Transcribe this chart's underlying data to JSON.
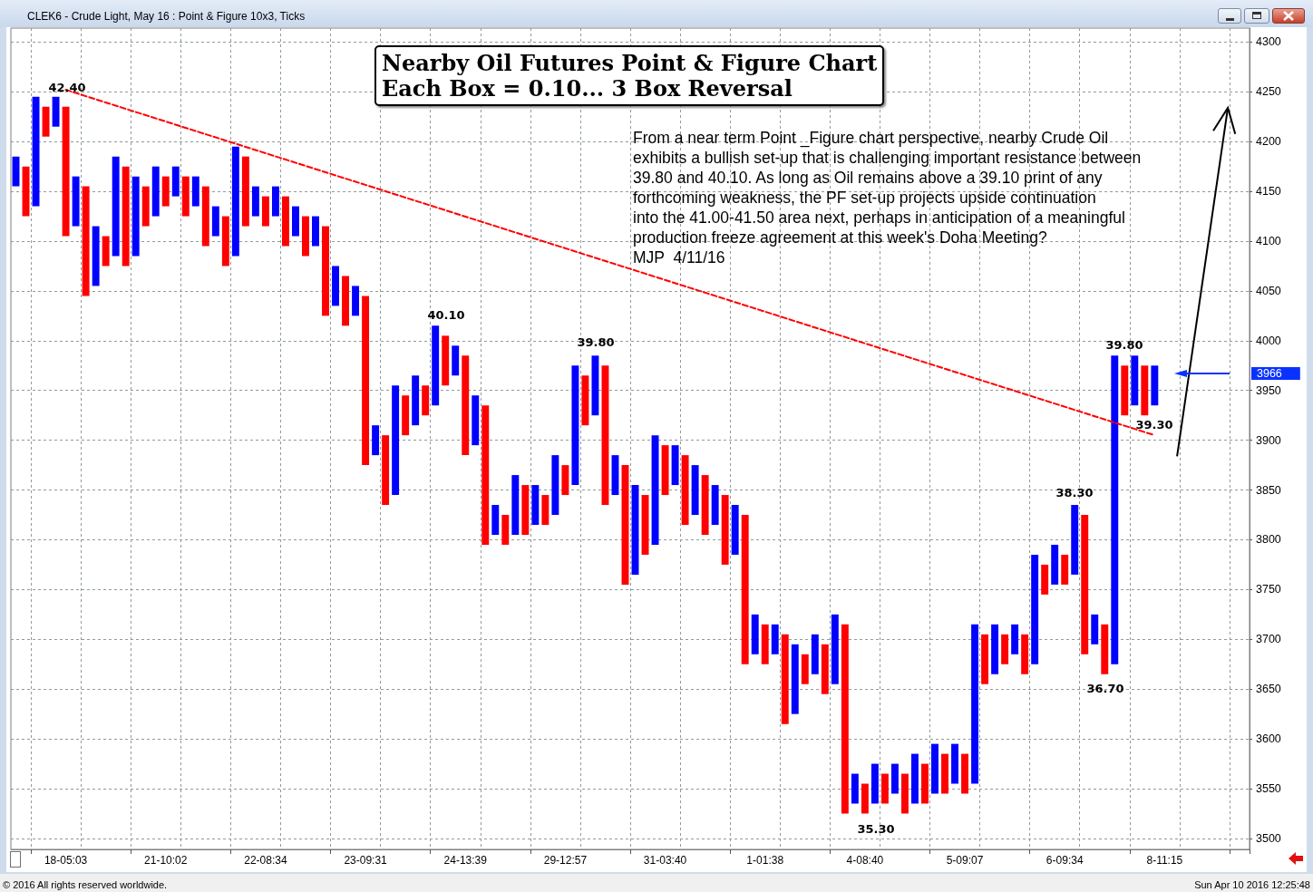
{
  "chart_data": {
    "type": "bar",
    "title": "Nearby Oil Futures Point & Figure Chart",
    "subtitle": "Each Box = 0.10... 3 Box Reversal",
    "annotations": [
      "CLEK6 - Crude Light, May 16 : Point & Figure 10x3, Ticks",
      "From a near term Point _Figure chart perspective, nearby Crude Oil\nexhibits a bullish set-up that is challenging important resistance between\n39.80 and 40.10. As long as Oil remains above a 39.10 print of any\nforthcoming weakness, the PF set-up projects upside continuation\ninto the 41.00-41.50 area next, perhaps in anticipation of a meaningful\nproduction freeze agreement at this week's Doha Meeting?\nMJP  4/11/16",
      "42.40",
      "40.10",
      "39.80",
      "38.30",
      "36.70",
      "35.30",
      "39.80",
      "39.30",
      "3966",
      "© 2016 All rights reserved worldwide.",
      "Sun Apr 10 2016 12:25:48"
    ],
    "categories": [
      null,
      null,
      null,
      null,
      null,
      "18-05:03",
      null,
      null,
      null,
      null,
      null,
      null,
      null,
      null,
      null,
      "21-10:02",
      null,
      null,
      null,
      null,
      null,
      null,
      null,
      null,
      null,
      "22-08:34",
      null,
      null,
      null,
      null,
      null,
      null,
      null,
      null,
      null,
      "23-09:31",
      null,
      null,
      null,
      null,
      null,
      null,
      null,
      null,
      null,
      "24-13:39",
      null,
      null,
      null,
      null,
      null,
      null,
      null,
      null,
      null,
      "29-12:57",
      null,
      null,
      null,
      null,
      null,
      null,
      null,
      null,
      null,
      "31-03:40",
      null,
      null,
      null,
      null,
      null,
      null,
      null,
      null,
      null,
      "1-01:38",
      null,
      null,
      null,
      null,
      null,
      null,
      null,
      null,
      null,
      "4-08:40",
      null,
      null,
      null,
      null,
      null,
      null,
      null,
      null,
      null,
      "5-09:07",
      null,
      null,
      null,
      null,
      null,
      null,
      null,
      null,
      null,
      "6-09:34",
      null,
      null,
      null,
      null,
      null,
      null,
      null,
      null,
      null,
      "8-11:15",
      null,
      null,
      null,
      null,
      null,
      null,
      null,
      null
    ],
    "ylim": [
      3489,
      4314
    ],
    "yticks": [
      3500,
      3550,
      3600,
      3650,
      3700,
      3750,
      3800,
      3850,
      3900,
      3950,
      4000,
      4050,
      4100,
      4150,
      4200,
      4250,
      4300
    ],
    "grid": true,
    "series": [
      {
        "color": "#0000ff",
        "base": [
          4155,
          null,
          4135,
          null,
          4215,
          null,
          4115,
          null,
          4055,
          null,
          4085,
          null,
          4085,
          null,
          4125,
          null,
          4145,
          null,
          4135,
          null,
          4105,
          null,
          4085,
          null,
          4125,
          null,
          4125,
          null,
          4105,
          null,
          4095,
          null,
          4035,
          null,
          4025,
          null,
          3885,
          null,
          3845,
          null,
          3915,
          null,
          3935,
          null,
          3965,
          null,
          3895,
          null,
          3805,
          null,
          3805,
          null,
          3815,
          null,
          3825,
          null,
          3855,
          null,
          3925,
          null,
          3845,
          null,
          3765,
          null,
          3795,
          null,
          3855,
          null,
          3825,
          null,
          3815,
          null,
          3785,
          null,
          3685,
          null,
          3685,
          null,
          3625,
          null,
          3665,
          null,
          3655,
          null,
          3535,
          null,
          3535,
          null,
          3545,
          null,
          3535,
          null,
          3545,
          null,
          3555,
          null,
          3555,
          null,
          3665,
          null,
          3685,
          null,
          3675,
          null,
          3755,
          null,
          3765,
          null,
          3695,
          null,
          3675,
          null,
          3935,
          null,
          3935,
          null,
          null,
          null,
          null,
          null,
          null,
          null,
          null,
          null
        ],
        "values": [
          30,
          null,
          110,
          null,
          30,
          null,
          50,
          null,
          60,
          null,
          100,
          null,
          80,
          null,
          50,
          null,
          30,
          null,
          30,
          null,
          30,
          null,
          110,
          null,
          30,
          null,
          30,
          null,
          30,
          null,
          30,
          null,
          40,
          null,
          30,
          null,
          30,
          null,
          110,
          null,
          50,
          null,
          80,
          null,
          30,
          null,
          50,
          null,
          30,
          null,
          60,
          null,
          40,
          null,
          60,
          null,
          120,
          null,
          60,
          null,
          40,
          null,
          90,
          null,
          110,
          null,
          40,
          null,
          50,
          null,
          40,
          null,
          50,
          null,
          40,
          null,
          30,
          null,
          70,
          null,
          40,
          null,
          70,
          null,
          30,
          null,
          40,
          null,
          30,
          null,
          50,
          null,
          50,
          null,
          40,
          null,
          160,
          null,
          50,
          null,
          30,
          null,
          110,
          null,
          40,
          null,
          70,
          null,
          30,
          null,
          310,
          null,
          50,
          null,
          40,
          null,
          null,
          null,
          null,
          null,
          null,
          null,
          null,
          null
        ]
      },
      {
        "color": "#ff0000",
        "base": [
          null,
          4125,
          null,
          4205,
          null,
          4105,
          null,
          4045,
          null,
          4075,
          null,
          4075,
          null,
          4115,
          null,
          4135,
          null,
          4125,
          null,
          4095,
          null,
          4075,
          null,
          4115,
          null,
          4115,
          null,
          4095,
          null,
          4085,
          null,
          4025,
          null,
          4015,
          null,
          3875,
          null,
          3835,
          null,
          3905,
          null,
          3925,
          null,
          3955,
          null,
          3885,
          null,
          3795,
          null,
          3795,
          null,
          3805,
          null,
          3815,
          null,
          3845,
          null,
          3915,
          null,
          3835,
          null,
          3755,
          null,
          3785,
          null,
          3845,
          null,
          3815,
          null,
          3805,
          null,
          3775,
          null,
          3675,
          null,
          3675,
          null,
          3615,
          null,
          3655,
          null,
          3645,
          null,
          3525,
          null,
          3525,
          null,
          3535,
          null,
          3525,
          null,
          3535,
          null,
          3545,
          null,
          3545,
          null,
          3655,
          null,
          3675,
          null,
          3665,
          null,
          3745,
          null,
          3755,
          null,
          3685,
          null,
          3665,
          null,
          3925,
          null,
          3925,
          null,
          null,
          null,
          null,
          null,
          null,
          null,
          null,
          null,
          null
        ],
        "values": [
          null,
          50,
          null,
          30,
          null,
          130,
          null,
          110,
          null,
          30,
          null,
          100,
          null,
          40,
          null,
          30,
          null,
          40,
          null,
          60,
          null,
          50,
          null,
          70,
          null,
          30,
          null,
          50,
          null,
          40,
          null,
          90,
          null,
          50,
          null,
          170,
          null,
          70,
          null,
          40,
          null,
          30,
          null,
          50,
          null,
          100,
          null,
          140,
          null,
          30,
          null,
          50,
          null,
          30,
          null,
          30,
          null,
          50,
          null,
          140,
          null,
          120,
          null,
          60,
          null,
          50,
          null,
          70,
          null,
          60,
          null,
          70,
          null,
          150,
          null,
          40,
          null,
          90,
          null,
          30,
          null,
          50,
          null,
          190,
          null,
          30,
          null,
          30,
          null,
          40,
          null,
          40,
          null,
          40,
          null,
          40,
          null,
          50,
          null,
          30,
          null,
          40,
          null,
          30,
          null,
          30,
          null,
          140,
          null,
          50,
          null,
          50,
          null,
          50,
          null,
          null,
          null,
          null,
          null,
          null,
          null,
          null,
          null,
          null
        ]
      },
      {
        "type": "line",
        "color": "#ff0000",
        "line_style": "dashed",
        "marker": "none",
        "values": [
          null,
          null,
          null,
          null,
          null,
          4252,
          null,
          null,
          null,
          null,
          null,
          null,
          null,
          null,
          null,
          null,
          null,
          null,
          null,
          null,
          null,
          null,
          null,
          null,
          null,
          null,
          null,
          null,
          null,
          null,
          null,
          null,
          null,
          null,
          null,
          null,
          null,
          null,
          null,
          null,
          null,
          null,
          null,
          null,
          null,
          null,
          null,
          null,
          null,
          null,
          null,
          null,
          null,
          null,
          null,
          null,
          null,
          null,
          null,
          null,
          null,
          null,
          null,
          null,
          null,
          null,
          null,
          null,
          null,
          null,
          null,
          null,
          null,
          null,
          null,
          null,
          null,
          null,
          null,
          null,
          null,
          null,
          null,
          null,
          null,
          null,
          null,
          null,
          null,
          null,
          null,
          null,
          null,
          null,
          null,
          null,
          null,
          null,
          null,
          null,
          null,
          null,
          null,
          null,
          null,
          null,
          null,
          null,
          null,
          null,
          null,
          null,
          null,
          null,
          3905,
          null,
          null,
          null,
          null,
          null,
          null,
          null,
          null,
          null
        ]
      }
    ]
  }
}
